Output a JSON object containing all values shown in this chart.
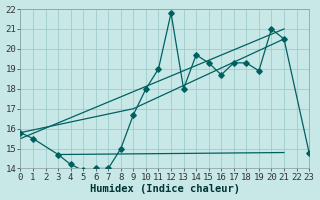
{
  "xlabel": "Humidex (Indice chaleur)",
  "bg_color": "#c8e8e8",
  "grid_color": "#a0cccc",
  "line_color": "#006060",
  "x_min": 0,
  "x_max": 23,
  "y_min": 14,
  "y_max": 22,
  "series1_x": [
    0,
    1,
    3,
    4,
    5,
    6,
    7,
    8,
    9,
    10,
    11,
    12,
    13,
    14,
    15,
    16,
    17,
    18,
    19,
    20,
    21,
    23
  ],
  "series1_y": [
    15.8,
    15.5,
    14.7,
    14.2,
    13.9,
    14.0,
    14.0,
    15.0,
    16.7,
    18.0,
    19.0,
    21.8,
    18.0,
    19.7,
    19.3,
    18.7,
    19.3,
    19.3,
    18.9,
    21.0,
    20.5,
    14.8
  ],
  "series2_x": [
    0,
    21
  ],
  "series2_y": [
    15.5,
    21.0
  ],
  "series3_x": [
    0,
    9,
    21
  ],
  "series3_y": [
    15.8,
    17.0,
    20.5
  ],
  "series4_x": [
    3,
    21
  ],
  "series4_y": [
    14.7,
    14.8
  ],
  "tick_fontsize": 6.5,
  "label_fontsize": 7.5
}
